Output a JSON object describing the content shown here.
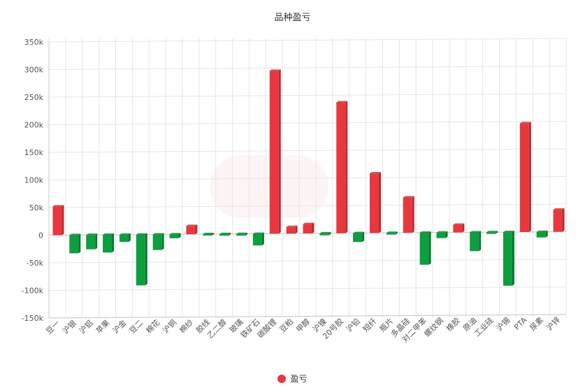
{
  "chart_data": {
    "type": "bar",
    "title": "品种盈亏",
    "ylim": [
      -150000,
      350000
    ],
    "yticks": [
      -150000,
      -100000,
      -50000,
      0,
      50000,
      100000,
      150000,
      200000,
      250000,
      300000,
      350000
    ],
    "ytick_labels": [
      "-150k",
      "-100k",
      "-50k",
      "0",
      "50k",
      "100k",
      "150k",
      "200k",
      "250k",
      "300k",
      "350k"
    ],
    "categories": [
      "豆一",
      "沪银",
      "沪铝",
      "苹果",
      "沪金",
      "豆二",
      "棉花",
      "沪铜",
      "棉纱",
      "胶线",
      "乙二醇",
      "玻璃",
      "铁矿石",
      "碳酸锂",
      "豆粕",
      "甲醇",
      "沪镍",
      "20号胶",
      "沪铅",
      "短纤",
      "瓶片",
      "多晶硅",
      "对二甲苯",
      "螺纹钢",
      "橡胶",
      "原油",
      "工业硅",
      "沪锡",
      "PTA",
      "尿素",
      "沪锌"
    ],
    "series": [
      {
        "name": "盈亏",
        "values": [
          52000,
          -33000,
          -26000,
          -32000,
          -13000,
          -92000,
          -28000,
          -7000,
          15000,
          -2500,
          -3000,
          -3000,
          -21000,
          295000,
          12000,
          17000,
          -3500,
          237000,
          -16000,
          108000,
          -3000,
          64000,
          -58000,
          -10000,
          14000,
          -34000,
          -3000,
          -97000,
          197000,
          -10000,
          40000
        ]
      }
    ],
    "colors": {
      "positive": "#e8383d",
      "negative": "#0c9e3f",
      "axis": "#c8c8c8",
      "grid": "#e6e6e6"
    },
    "grid": true,
    "legend_position": "bottom"
  }
}
